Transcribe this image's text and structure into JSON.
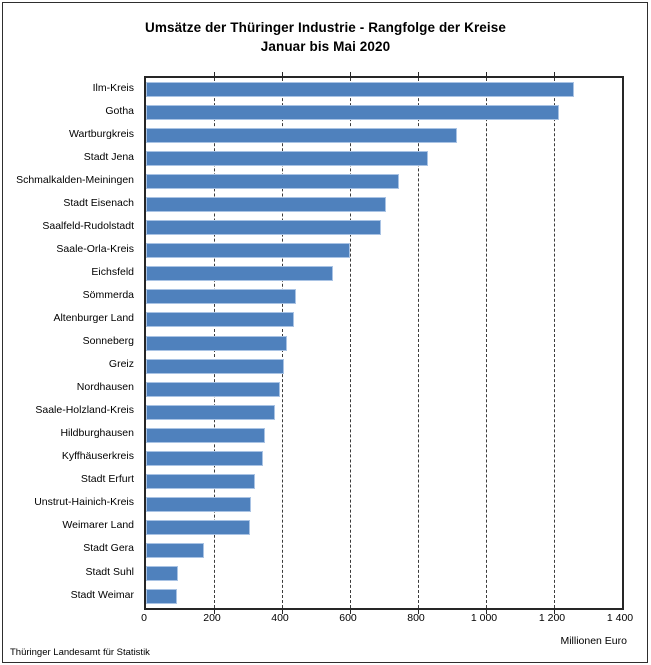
{
  "title": {
    "line1": "Umsätze der Thüringer Industrie - Rangfolge der Kreise",
    "line2": "Januar bis Mai 2020"
  },
  "footer": "Thüringer Landesamt für Statistik",
  "chart_data": {
    "type": "bar",
    "orientation": "horizontal",
    "title": "Umsätze der Thüringer Industrie - Rangfolge der Kreise",
    "subtitle": "Januar bis Mai 2020",
    "xlabel": "Millionen Euro",
    "ylabel": "",
    "xlim": [
      0,
      1400
    ],
    "xticks": [
      0,
      200,
      400,
      600,
      800,
      1000,
      1200,
      1400
    ],
    "xtick_labels": [
      "0",
      "200",
      "400",
      "600",
      "800",
      "1 000",
      "1 200",
      "1 400"
    ],
    "grid": "vertical-dashed",
    "legend": "none",
    "categories": [
      "Ilm-Kreis",
      "Gotha",
      "Wartburgkreis",
      "Stadt Jena",
      "Schmalkalden-Meiningen",
      "Stadt Eisenach",
      "Saalfeld-Rudolstadt",
      "Saale-Orla-Kreis",
      "Eichsfeld",
      "Sömmerda",
      "Altenburger Land",
      "Sonneberg",
      "Greiz",
      "Nordhausen",
      "Saale-Holzland-Kreis",
      "Hildburghausen",
      "Kyffhäuserkreis",
      "Stadt Erfurt",
      "Unstrut-Hainich-Kreis",
      "Weimarer Land",
      "Stadt Gera",
      "Stadt Suhl",
      "Stadt Weimar"
    ],
    "values": [
      1260,
      1215,
      915,
      830,
      745,
      705,
      690,
      600,
      550,
      440,
      435,
      415,
      405,
      395,
      380,
      350,
      345,
      320,
      310,
      305,
      170,
      95,
      90
    ],
    "bar_color": "#4f81bd",
    "bar_edge_color": "#a9c3e4",
    "grid_color": "#3c3c3c",
    "axis_color": "#262626"
  }
}
